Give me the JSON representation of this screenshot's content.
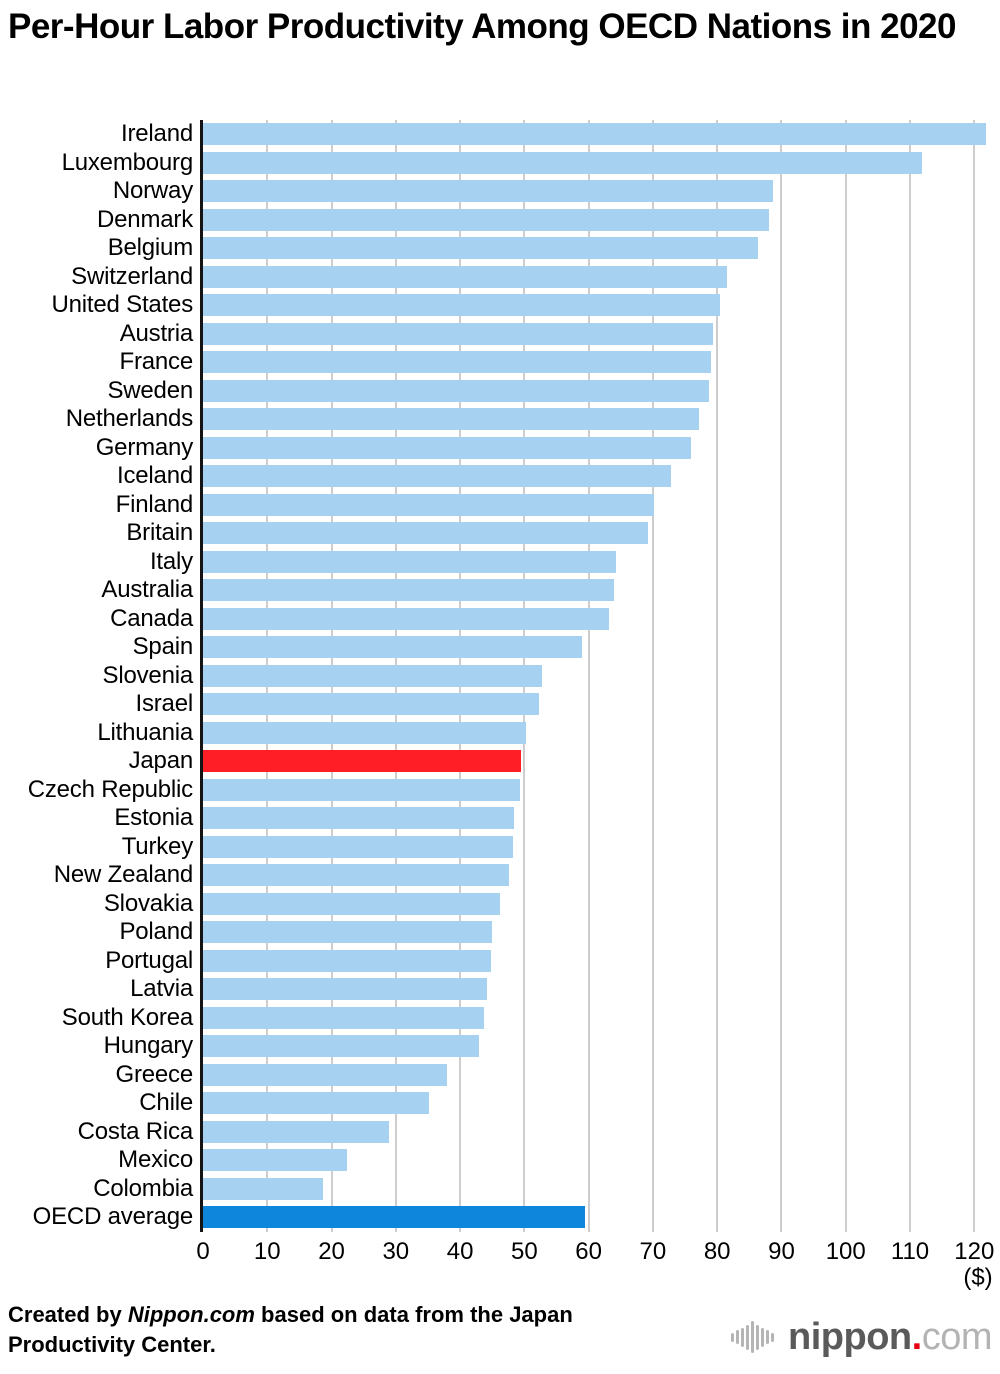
{
  "title": "Per-Hour Labor Productivity Among OECD Nations in 2020",
  "chart_data": {
    "type": "bar",
    "orientation": "horizontal",
    "title": "Per-Hour Labor Productivity Among OECD Nations in 2020",
    "categories": [
      "Ireland",
      "Luxembourg",
      "Norway",
      "Denmark",
      "Belgium",
      "Switzerland",
      "United States",
      "Austria",
      "France",
      "Sweden",
      "Netherlands",
      "Germany",
      "Iceland",
      "Finland",
      "Britain",
      "Italy",
      "Australia",
      "Canada",
      "Spain",
      "Slovenia",
      "Israel",
      "Lithuania",
      "Japan",
      "Czech Republic",
      "Estonia",
      "Turkey",
      "New Zealand",
      "Slovakia",
      "Poland",
      "Portugal",
      "Latvia",
      "South Korea",
      "Hungary",
      "Greece",
      "Chile",
      "Costa Rica",
      "Mexico",
      "Colombia",
      "OECD average"
    ],
    "values": [
      121.8,
      111.8,
      88.7,
      88.1,
      86.3,
      81.5,
      80.5,
      79.3,
      79.0,
      78.8,
      77.2,
      76.0,
      72.8,
      70.1,
      69.2,
      64.3,
      63.9,
      63.1,
      58.9,
      52.7,
      52.2,
      50.2,
      49.5,
      49.3,
      48.4,
      48.2,
      47.6,
      46.2,
      44.9,
      44.8,
      44.2,
      43.7,
      42.9,
      37.9,
      35.1,
      29.0,
      22.4,
      18.7,
      59.4
    ],
    "unit_label": "($)",
    "x_ticks": [
      0,
      10,
      20,
      30,
      40,
      50,
      60,
      70,
      80,
      90,
      100,
      110,
      120
    ],
    "xlim": [
      0,
      124
    ],
    "grid": true,
    "legend": "none",
    "bar_color": "#a6d1f1",
    "highlights": [
      {
        "category": "Japan",
        "color": "#ff1e25"
      },
      {
        "category": "OECD average",
        "color": "#0e86db"
      }
    ],
    "axis_color": "#141414",
    "gridline_color": "#cdcdcd"
  },
  "footer": {
    "credit_prefix": "Created by ",
    "credit_brand": "Nippon.com",
    "credit_suffix": " based on data from the Japan Productivity Center."
  },
  "logo": {
    "icon": "waveform-icon",
    "name": "nippon",
    "dot": ".",
    "tld": "com"
  }
}
